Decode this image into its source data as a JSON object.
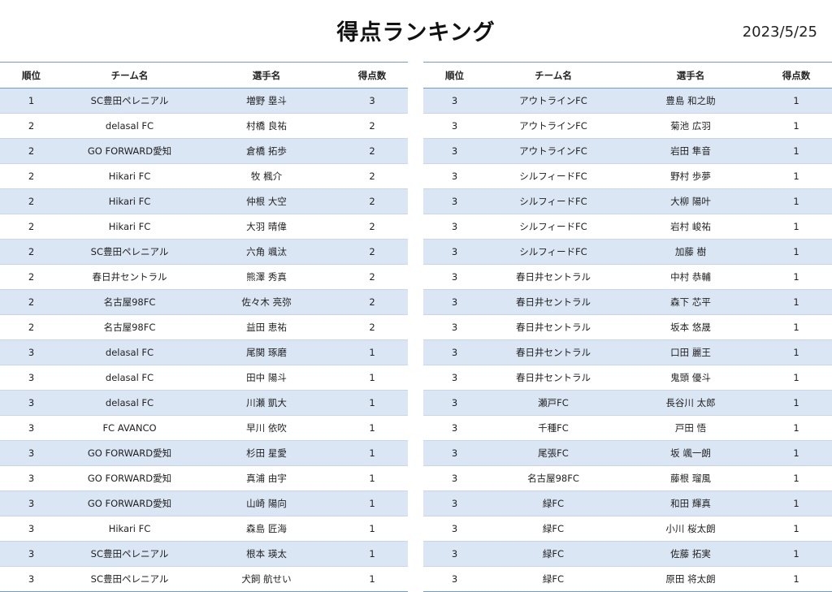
{
  "title": "得点ランキング",
  "date": "2023/5/25",
  "columns": [
    "順位",
    "チーム名",
    "選手名",
    "得点数"
  ],
  "left_rows": [
    {
      "rank": "1",
      "team": "SC豊田ペレニアル",
      "player": "増野 塁斗",
      "goals": "3"
    },
    {
      "rank": "2",
      "team": "delasal FC",
      "player": "村橋 良祐",
      "goals": "2"
    },
    {
      "rank": "2",
      "team": "GO FORWARD愛知",
      "player": "倉橋 拓歩",
      "goals": "2"
    },
    {
      "rank": "2",
      "team": "Hikari FC",
      "player": "牧 楓介",
      "goals": "2"
    },
    {
      "rank": "2",
      "team": "Hikari FC",
      "player": "仲根 大空",
      "goals": "2"
    },
    {
      "rank": "2",
      "team": "Hikari FC",
      "player": "大羽 晴偉",
      "goals": "2"
    },
    {
      "rank": "2",
      "team": "SC豊田ペレニアル",
      "player": "六角 颯汰",
      "goals": "2"
    },
    {
      "rank": "2",
      "team": "春日井セントラル",
      "player": "熊澤 秀真",
      "goals": "2"
    },
    {
      "rank": "2",
      "team": "名古屋98FC",
      "player": "佐々木 亮弥",
      "goals": "2"
    },
    {
      "rank": "2",
      "team": "名古屋98FC",
      "player": "益田 恵祐",
      "goals": "2"
    },
    {
      "rank": "3",
      "team": "delasal FC",
      "player": "尾関 琢磨",
      "goals": "1"
    },
    {
      "rank": "3",
      "team": "delasal FC",
      "player": "田中 陽斗",
      "goals": "1"
    },
    {
      "rank": "3",
      "team": "delasal FC",
      "player": "川瀬 凱大",
      "goals": "1"
    },
    {
      "rank": "3",
      "team": "FC AVANCO",
      "player": "早川 依吹",
      "goals": "1"
    },
    {
      "rank": "3",
      "team": "GO FORWARD愛知",
      "player": "杉田 星愛",
      "goals": "1"
    },
    {
      "rank": "3",
      "team": "GO FORWARD愛知",
      "player": "真浦 由宇",
      "goals": "1"
    },
    {
      "rank": "3",
      "team": "GO FORWARD愛知",
      "player": "山崎 陽向",
      "goals": "1"
    },
    {
      "rank": "3",
      "team": "Hikari FC",
      "player": "森島 匠海",
      "goals": "1"
    },
    {
      "rank": "3",
      "team": "SC豊田ペレニアル",
      "player": "根本 瑛太",
      "goals": "1"
    },
    {
      "rank": "3",
      "team": "SC豊田ペレニアル",
      "player": "犬飼 航せい",
      "goals": "1"
    }
  ],
  "right_rows": [
    {
      "rank": "3",
      "team": "アウトラインFC",
      "player": "豊島 和之助",
      "goals": "1"
    },
    {
      "rank": "3",
      "team": "アウトラインFC",
      "player": "菊池 広羽",
      "goals": "1"
    },
    {
      "rank": "3",
      "team": "アウトラインFC",
      "player": "岩田 隼音",
      "goals": "1"
    },
    {
      "rank": "3",
      "team": "シルフィードFC",
      "player": "野村 歩夢",
      "goals": "1"
    },
    {
      "rank": "3",
      "team": "シルフィードFC",
      "player": "大柳 陽叶",
      "goals": "1"
    },
    {
      "rank": "3",
      "team": "シルフィードFC",
      "player": "岩村 峻祐",
      "goals": "1"
    },
    {
      "rank": "3",
      "team": "シルフィードFC",
      "player": "加藤 樹",
      "goals": "1"
    },
    {
      "rank": "3",
      "team": "春日井セントラル",
      "player": "中村 恭輔",
      "goals": "1"
    },
    {
      "rank": "3",
      "team": "春日井セントラル",
      "player": "森下 芯平",
      "goals": "1"
    },
    {
      "rank": "3",
      "team": "春日井セントラル",
      "player": "坂本 悠晟",
      "goals": "1"
    },
    {
      "rank": "3",
      "team": "春日井セントラル",
      "player": "口田 麗王",
      "goals": "1"
    },
    {
      "rank": "3",
      "team": "春日井セントラル",
      "player": "鬼頭 優斗",
      "goals": "1"
    },
    {
      "rank": "3",
      "team": "瀬戸FC",
      "player": "長谷川 太郎",
      "goals": "1"
    },
    {
      "rank": "3",
      "team": "千種FC",
      "player": "戸田 悟",
      "goals": "1"
    },
    {
      "rank": "3",
      "team": "尾張FC",
      "player": "坂 颯一朗",
      "goals": "1"
    },
    {
      "rank": "3",
      "team": "名古屋98FC",
      "player": "藤根 瑠風",
      "goals": "1"
    },
    {
      "rank": "3",
      "team": "緑FC",
      "player": "和田 輝真",
      "goals": "1"
    },
    {
      "rank": "3",
      "team": "緑FC",
      "player": "小川 桜太朗",
      "goals": "1"
    },
    {
      "rank": "3",
      "team": "緑FC",
      "player": "佐藤 拓実",
      "goals": "1"
    },
    {
      "rank": "3",
      "team": "緑FC",
      "player": "原田 将太朗",
      "goals": "1"
    }
  ]
}
